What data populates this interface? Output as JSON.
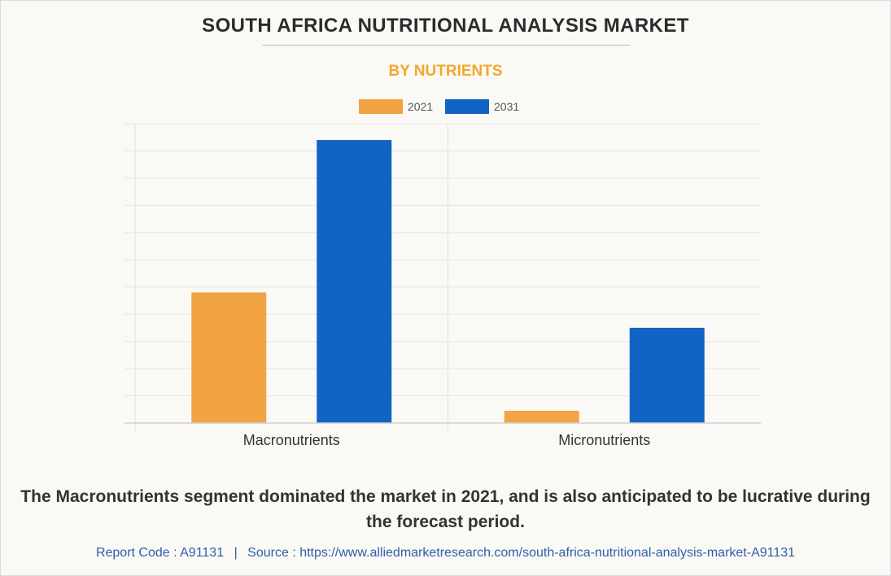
{
  "header": {
    "title": "SOUTH AFRICA NUTRITIONAL ANALYSIS MARKET",
    "subtitle": "BY NUTRIENTS"
  },
  "chart_data": {
    "type": "bar",
    "categories": [
      "Macronutrients",
      "Micronutrients"
    ],
    "series": [
      {
        "name": "2021",
        "values": [
          48,
          4.5
        ],
        "color": "#f2a444"
      },
      {
        "name": "2031",
        "values": [
          104,
          35
        ],
        "color": "#1164c4"
      }
    ],
    "ylim": [
      0,
      110
    ],
    "y_gridline_step": 10,
    "y_tick_labels": "none",
    "grid": true,
    "legend_placement": "top-center"
  },
  "caption": "The Macronutrients segment dominated the market in 2021, and is also anticipated to be lucrative during the forecast period.",
  "footer": {
    "report_code": "Report Code : A91131",
    "separator": "|",
    "source": "Source : https://www.alliedmarketresearch.com/south-africa-nutritional-analysis-market-A91131"
  }
}
